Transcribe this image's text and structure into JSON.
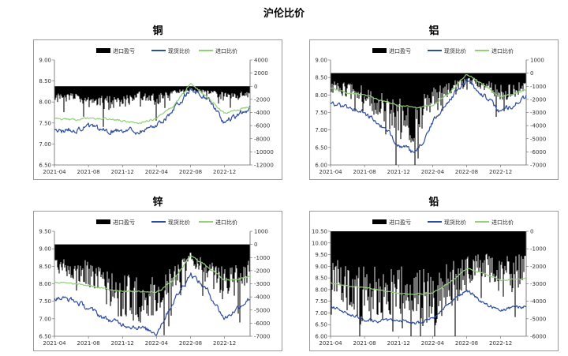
{
  "page": {
    "title": "沪伦比价"
  },
  "colors": {
    "profit": "#000000",
    "spot": "#2e4d9e",
    "import": "#92d07a"
  },
  "chart_data": [
    {
      "id": "copper",
      "type": "line",
      "title": "铜",
      "legend": [
        "进口盈亏",
        "现货比价",
        "进口比价"
      ],
      "x_ticks": [
        "2021-04",
        "2021-08",
        "2021-12",
        "2022-04",
        "2022-08",
        "2022-12"
      ],
      "x_range": [
        "2021-04",
        "2023-03"
      ],
      "y_left": {
        "range": [
          6.5,
          9.0
        ],
        "ticks": [
          "9.00",
          "8.50",
          "8.00",
          "7.50",
          "7.00",
          "6.50"
        ]
      },
      "y_right": {
        "range": [
          -12000,
          4000
        ],
        "ticks": [
          "4000",
          "2000",
          "0",
          "-2000",
          "-4000",
          "-6000",
          "-8000",
          "-10000",
          "-12000"
        ]
      },
      "series": [
        {
          "name": "进口盈亏",
          "axis": "right",
          "style": "bar",
          "points": [
            [
              "2021-04",
              -1800
            ],
            [
              "2021-06",
              -1500
            ],
            [
              "2021-08",
              -2200
            ],
            [
              "2021-10",
              -2600
            ],
            [
              "2021-12",
              -2400
            ],
            [
              "2022-02",
              -1300
            ],
            [
              "2022-04",
              -2200
            ],
            [
              "2022-06",
              -900
            ],
            [
              "2022-08",
              -500
            ],
            [
              "2022-10",
              -800
            ],
            [
              "2022-12",
              -1700
            ],
            [
              "2023-03",
              -1200
            ]
          ]
        },
        {
          "name": "现货比价",
          "axis": "left",
          "style": "line",
          "points": [
            [
              "2021-04",
              7.3
            ],
            [
              "2021-06",
              7.35
            ],
            [
              "2021-08",
              7.4
            ],
            [
              "2021-10",
              7.3
            ],
            [
              "2021-12",
              7.35
            ],
            [
              "2022-02",
              7.3
            ],
            [
              "2022-04",
              7.45
            ],
            [
              "2022-06",
              7.8
            ],
            [
              "2022-08",
              8.3
            ],
            [
              "2022-10",
              8.1
            ],
            [
              "2022-12",
              7.5
            ],
            [
              "2023-03",
              7.85
            ]
          ]
        },
        {
          "name": "进口比价",
          "axis": "left",
          "style": "line",
          "points": [
            [
              "2021-04",
              7.62
            ],
            [
              "2021-06",
              7.57
            ],
            [
              "2021-08",
              7.6
            ],
            [
              "2021-10",
              7.6
            ],
            [
              "2021-12",
              7.55
            ],
            [
              "2022-02",
              7.5
            ],
            [
              "2022-04",
              7.6
            ],
            [
              "2022-06",
              7.9
            ],
            [
              "2022-08",
              8.45
            ],
            [
              "2022-10",
              8.1
            ],
            [
              "2022-12",
              7.72
            ],
            [
              "2023-03",
              7.9
            ]
          ]
        }
      ]
    },
    {
      "id": "aluminum",
      "type": "line",
      "title": "铝",
      "legend": [
        "进口盈亏",
        "现货比价",
        "进口比价"
      ],
      "x_ticks": [
        "2021-04",
        "2021-08",
        "2021-12",
        "2022-04",
        "2022-08",
        "2022-12"
      ],
      "x_range": [
        "2021-04",
        "2023-03"
      ],
      "y_left": {
        "range": [
          6.0,
          9.0
        ],
        "ticks": [
          "9.00",
          "8.50",
          "8.00",
          "7.50",
          "7.00",
          "6.50",
          "6.00"
        ]
      },
      "y_right": {
        "range": [
          -7000,
          1000
        ],
        "ticks": [
          "1000",
          "0",
          "-1000",
          "-2000",
          "-3000",
          "-4000",
          "-5000",
          "-6000",
          "-7000"
        ]
      },
      "series": [
        {
          "name": "进口盈亏",
          "axis": "right",
          "style": "bar",
          "points": [
            [
              "2021-04",
              -1000
            ],
            [
              "2021-06",
              -1300
            ],
            [
              "2021-08",
              -1700
            ],
            [
              "2021-10",
              -2600
            ],
            [
              "2021-12",
              -3500
            ],
            [
              "2022-02",
              -3800
            ],
            [
              "2022-04",
              -2000
            ],
            [
              "2022-06",
              -1200
            ],
            [
              "2022-08",
              -500
            ],
            [
              "2022-10",
              -900
            ],
            [
              "2022-12",
              -1500
            ],
            [
              "2023-03",
              -1100
            ]
          ]
        },
        {
          "name": "现货比价",
          "axis": "left",
          "style": "line",
          "points": [
            [
              "2021-04",
              7.75
            ],
            [
              "2021-06",
              7.65
            ],
            [
              "2021-08",
              7.5
            ],
            [
              "2021-10",
              7.1
            ],
            [
              "2021-12",
              6.6
            ],
            [
              "2022-02",
              6.3
            ],
            [
              "2022-04",
              7.2
            ],
            [
              "2022-06",
              7.9
            ],
            [
              "2022-08",
              8.4
            ],
            [
              "2022-10",
              8.0
            ],
            [
              "2022-12",
              7.5
            ],
            [
              "2023-03",
              7.95
            ]
          ]
        },
        {
          "name": "进口比价",
          "axis": "left",
          "style": "line",
          "points": [
            [
              "2021-04",
              8.2
            ],
            [
              "2021-06",
              8.05
            ],
            [
              "2021-08",
              8.0
            ],
            [
              "2021-10",
              7.85
            ],
            [
              "2021-12",
              7.7
            ],
            [
              "2022-02",
              7.65
            ],
            [
              "2022-04",
              7.7
            ],
            [
              "2022-06",
              8.05
            ],
            [
              "2022-08",
              8.6
            ],
            [
              "2022-10",
              8.3
            ],
            [
              "2022-12",
              7.95
            ],
            [
              "2023-03",
              8.15
            ]
          ]
        }
      ]
    },
    {
      "id": "zinc",
      "type": "line",
      "title": "锌",
      "legend": [
        "进口盈亏",
        "现货比价",
        "进口比价"
      ],
      "x_ticks": [
        "2021-04",
        "2021-08",
        "2021-12",
        "2022-04",
        "2022-08",
        "2022-12"
      ],
      "x_range": [
        "2021-04",
        "2023-03"
      ],
      "y_left": {
        "range": [
          6.5,
          9.5
        ],
        "ticks": [
          "9.50",
          "9.00",
          "8.50",
          "8.00",
          "7.50",
          "7.00",
          "6.50"
        ]
      },
      "y_right": {
        "range": [
          -7000,
          1000
        ],
        "ticks": [
          "1000",
          "0",
          "-1000",
          "-2000",
          "-3000",
          "-4000",
          "-5000",
          "-6000",
          "-7000"
        ]
      },
      "series": [
        {
          "name": "进口盈亏",
          "axis": "right",
          "style": "bar",
          "points": [
            [
              "2021-04",
              -1500
            ],
            [
              "2021-06",
              -1800
            ],
            [
              "2021-08",
              -2200
            ],
            [
              "2021-10",
              -3200
            ],
            [
              "2021-12",
              -4000
            ],
            [
              "2022-02",
              -4200
            ],
            [
              "2022-04",
              -4000
            ],
            [
              "2022-06",
              -2600
            ],
            [
              "2022-08",
              -1000
            ],
            [
              "2022-10",
              -2200
            ],
            [
              "2022-12",
              -3000
            ],
            [
              "2023-03",
              -2200
            ]
          ]
        },
        {
          "name": "现货比价",
          "axis": "left",
          "style": "line",
          "points": [
            [
              "2021-04",
              7.6
            ],
            [
              "2021-06",
              7.55
            ],
            [
              "2021-08",
              7.3
            ],
            [
              "2021-10",
              7.0
            ],
            [
              "2021-12",
              6.85
            ],
            [
              "2022-02",
              6.75
            ],
            [
              "2022-04",
              6.6
            ],
            [
              "2022-06",
              7.5
            ],
            [
              "2022-08",
              8.3
            ],
            [
              "2022-10",
              7.8
            ],
            [
              "2022-12",
              7.0
            ],
            [
              "2023-03",
              7.6
            ]
          ]
        },
        {
          "name": "进口比价",
          "axis": "left",
          "style": "line",
          "points": [
            [
              "2021-04",
              8.05
            ],
            [
              "2021-06",
              8.0
            ],
            [
              "2021-08",
              7.95
            ],
            [
              "2021-10",
              7.85
            ],
            [
              "2021-12",
              7.8
            ],
            [
              "2022-02",
              7.78
            ],
            [
              "2022-04",
              7.75
            ],
            [
              "2022-06",
              8.1
            ],
            [
              "2022-08",
              8.8
            ],
            [
              "2022-10",
              8.5
            ],
            [
              "2022-12",
              8.1
            ],
            [
              "2023-03",
              8.2
            ]
          ]
        }
      ]
    },
    {
      "id": "lead",
      "type": "line",
      "title": "铅",
      "legend": [
        "进口盈亏",
        "现货比价",
        "进口比价"
      ],
      "x_ticks": [
        "2021-04",
        "2021-08",
        "2021-12",
        "2022-04",
        "2022-08",
        "2022-12"
      ],
      "x_range": [
        "2021-04",
        "2023-03"
      ],
      "y_left": {
        "range": [
          6.0,
          10.5
        ],
        "ticks": [
          "10.50",
          "10.00",
          "9.50",
          "9.00",
          "8.50",
          "8.00",
          "7.50",
          "7.00",
          "6.50",
          "6.00"
        ]
      },
      "y_right": {
        "range": [
          -6000,
          0
        ],
        "ticks": [
          "0",
          "-1000",
          "-2000",
          "-3000",
          "-4000",
          "-5000",
          "-6000"
        ]
      },
      "series": [
        {
          "name": "进口盈亏",
          "axis": "right",
          "style": "bar",
          "points": [
            [
              "2021-04",
              -2500
            ],
            [
              "2021-06",
              -3000
            ],
            [
              "2021-08",
              -3700
            ],
            [
              "2021-10",
              -3500
            ],
            [
              "2021-12",
              -3300
            ],
            [
              "2022-02",
              -3800
            ],
            [
              "2022-04",
              -3900
            ],
            [
              "2022-06",
              -3300
            ],
            [
              "2022-08",
              -2100
            ],
            [
              "2022-10",
              -1800
            ],
            [
              "2022-12",
              -2500
            ],
            [
              "2023-03",
              -2300
            ]
          ]
        },
        {
          "name": "现货比价",
          "axis": "left",
          "style": "line",
          "points": [
            [
              "2021-04",
              7.3
            ],
            [
              "2021-06",
              7.0
            ],
            [
              "2021-08",
              6.7
            ],
            [
              "2021-10",
              6.65
            ],
            [
              "2021-12",
              6.7
            ],
            [
              "2022-02",
              6.55
            ],
            [
              "2022-04",
              6.75
            ],
            [
              "2022-06",
              7.4
            ],
            [
              "2022-08",
              8.0
            ],
            [
              "2022-10",
              7.4
            ],
            [
              "2022-12",
              7.1
            ],
            [
              "2023-03",
              7.3
            ]
          ]
        },
        {
          "name": "进口比价",
          "axis": "left",
          "style": "line",
          "points": [
            [
              "2021-04",
              8.3
            ],
            [
              "2021-06",
              8.15
            ],
            [
              "2021-08",
              8.1
            ],
            [
              "2021-10",
              7.95
            ],
            [
              "2021-12",
              7.85
            ],
            [
              "2022-02",
              7.8
            ],
            [
              "2022-04",
              7.85
            ],
            [
              "2022-06",
              8.3
            ],
            [
              "2022-08",
              8.9
            ],
            [
              "2022-10",
              8.7
            ],
            [
              "2022-12",
              8.4
            ],
            [
              "2023-03",
              8.5
            ]
          ]
        }
      ]
    }
  ]
}
